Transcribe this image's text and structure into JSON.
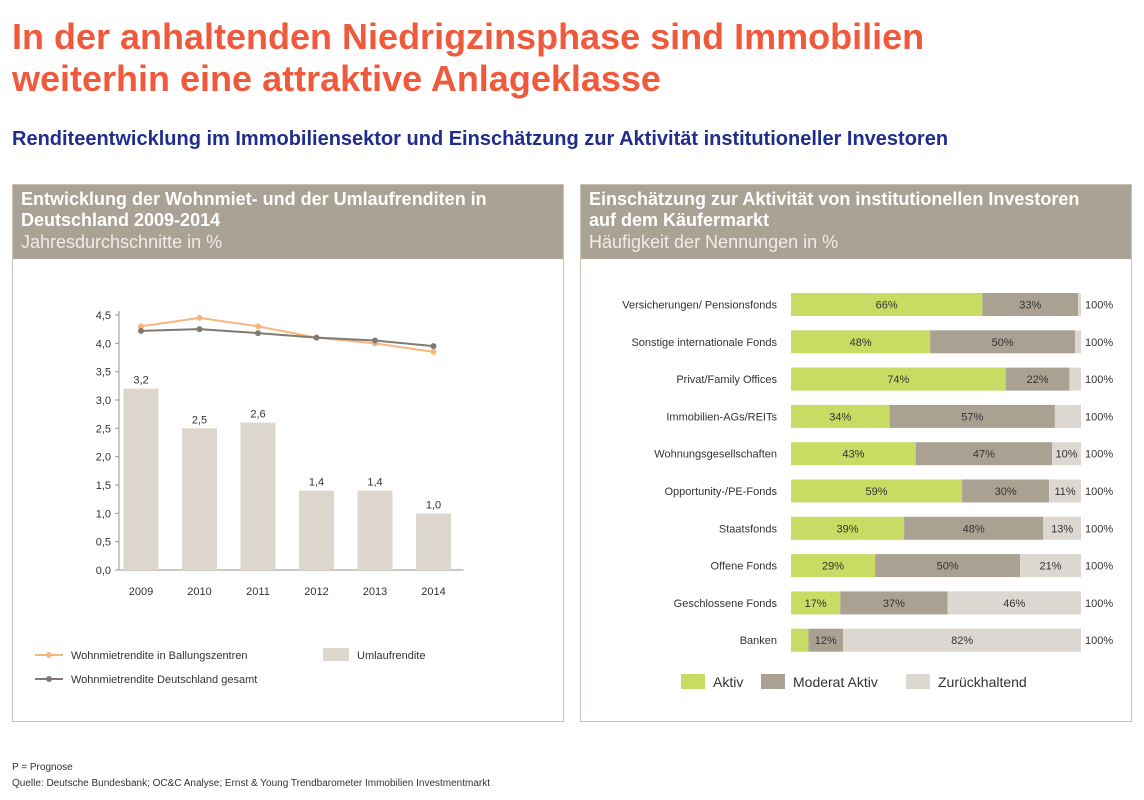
{
  "title_line1": "In der anhaltenden Niedrigzinsphase sind Immobilien",
  "title_line2": "weiterhin eine attraktive Anlageklasse",
  "subtitle": "Renditeentwicklung im Immobiliensektor und Einschätzung zur Aktivität institutioneller Investoren",
  "colors": {
    "title": "#ef5a3c",
    "subtitle": "#1f2d8c",
    "header_bg": "#aaa294",
    "bar_umlauf": "#dcd6cd",
    "line_ballung": "#f6b77e",
    "line_deutschland": "#7f7a72",
    "aktiv": "#c8dc64",
    "moderat": "#aba193",
    "zurueck": "#dcd7d0"
  },
  "left_panel": {
    "heading_line1": "Entwicklung der Wohnmiet- und der Umlaufrenditen in",
    "heading_line2": "Deutschland 2009-2014",
    "subheading": "Jahresdurchschnitte in %"
  },
  "right_panel": {
    "heading_line1": "Einschätzung zur Aktivität von institutionellen Investoren",
    "heading_line2": "auf dem Käufermarkt",
    "subheading": "Häufigkeit der Nennungen in %"
  },
  "chart_data": [
    {
      "type": "bar",
      "categories": [
        "2009",
        "2010",
        "2011",
        "2012",
        "2013",
        "2014"
      ],
      "ylim": [
        0,
        4.5
      ],
      "yticks": [
        "0,0",
        "0,5",
        "1,0",
        "1,5",
        "2,0",
        "2,5",
        "3,0",
        "3,5",
        "4,0",
        "4,5"
      ],
      "series": [
        {
          "name": "Umlaufrendite",
          "kind": "bar",
          "values": [
            3.2,
            2.5,
            2.6,
            1.4,
            1.4,
            1.0
          ],
          "labels": [
            "3,2",
            "2,5",
            "2,6",
            "1,4",
            "1,4",
            "1,0"
          ]
        },
        {
          "name": "Wohnmietrendite in Ballungszentren",
          "kind": "line",
          "values": [
            4.3,
            4.45,
            4.3,
            4.1,
            4.0,
            3.85
          ]
        },
        {
          "name": "Wohnmietrendite Deutschland gesamt",
          "kind": "line",
          "values": [
            4.22,
            4.25,
            4.18,
            4.1,
            4.05,
            3.95
          ]
        }
      ],
      "legend": [
        "Wohnmietrendite in Ballungszentren",
        "Umlaufrendite",
        "Wohnmietrendite Deutschland gesamt"
      ],
      "grid": false
    },
    {
      "type": "bar",
      "orientation": "horizontal-stacked",
      "categories": [
        "Versicherungen/ Pensionsfonds",
        "Sonstige internationale Fonds",
        "Privat/Family Offices",
        "Immobilien-AGs/REITs",
        "Wohnungsgesellschaften",
        "Opportunity-/PE-Fonds",
        "Staatsfonds",
        "Offene Fonds",
        "Geschlossene Fonds",
        "Banken"
      ],
      "series": [
        {
          "name": "Aktiv",
          "values": [
            66,
            48,
            74,
            34,
            43,
            59,
            39,
            29,
            17,
            6
          ]
        },
        {
          "name": "Moderat Aktiv",
          "values": [
            33,
            50,
            22,
            57,
            47,
            30,
            48,
            50,
            37,
            12
          ]
        },
        {
          "name": "Zurückhaltend",
          "values": [
            1,
            2,
            4,
            9,
            10,
            11,
            13,
            21,
            46,
            82
          ]
        }
      ],
      "labels": {
        "Aktiv": [
          "66%",
          "48%",
          "74%",
          "34%",
          "43%",
          "59%",
          "39%",
          "29%",
          "17%",
          ""
        ],
        "Moderat Aktiv": [
          "33%",
          "50%",
          "22%",
          "57%",
          "47%",
          "30%",
          "48%",
          "50%",
          "37%",
          "12%"
        ],
        "Zurückhaltend": [
          "",
          "",
          "",
          "",
          "10%",
          "11%",
          "13%",
          "21%",
          "46%",
          "82%"
        ]
      },
      "totals": [
        "100%",
        "100%",
        "100%",
        "100%",
        "100%",
        "100%",
        "100%",
        "100%",
        "100%",
        "100%"
      ],
      "xlim": [
        0,
        100
      ],
      "legend": [
        "Aktiv",
        "Moderat Aktiv",
        "Zurückhaltend"
      ]
    }
  ],
  "footnote1": "P = Prognose",
  "footnote2": "Quelle: Deutsche Bundesbank; OC&C Analyse; Ernst & Young Trendbarometer Immobilien Investmentmarkt"
}
